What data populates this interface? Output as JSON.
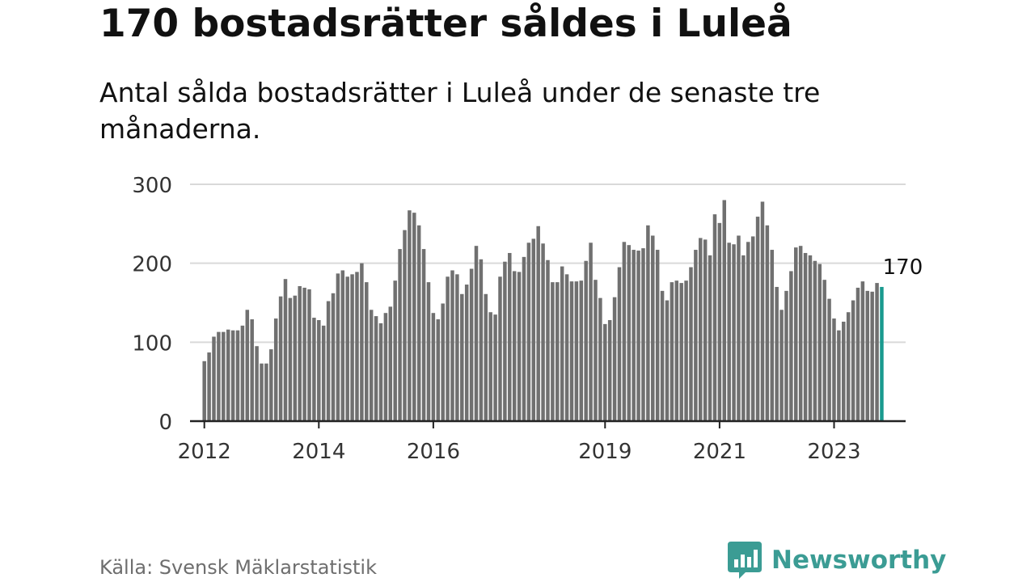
{
  "title": "170 bostadsrätter såldes i Luleå",
  "subtitle": "Antal sålda bostadsrätter i Luleå under de senaste tre månaderna.",
  "source": "Källa: Svensk Mäklarstatistik",
  "brand": {
    "name": "Newsworthy",
    "icon": "newsworthy-chart-bubble-icon",
    "color": "#3b9c94"
  },
  "colors": {
    "bar": "#707070",
    "highlight": "#1a9a8f",
    "grid": "#d9d9d9",
    "axis": "#222222",
    "tick_text": "#333333"
  },
  "chart_data": {
    "type": "bar",
    "title": "Antal sålda bostadsrätter i Luleå",
    "xlabel": "",
    "ylabel": "",
    "ylim": [
      0,
      300
    ],
    "yticks": [
      0,
      100,
      200,
      300
    ],
    "x_start": 2012.0,
    "x_step": 0.08333,
    "x_range": [
      2011.75,
      2024.25
    ],
    "xticks": [
      {
        "x": 2012,
        "label": "2012"
      },
      {
        "x": 2014,
        "label": "2014"
      },
      {
        "x": 2016,
        "label": "2016"
      },
      {
        "x": 2019,
        "label": "2019"
      },
      {
        "x": 2021,
        "label": "2021"
      },
      {
        "x": 2023,
        "label": "2023"
      }
    ],
    "values": [
      76,
      87,
      107,
      113,
      113,
      116,
      115,
      115,
      121,
      141,
      129,
      95,
      73,
      73,
      91,
      130,
      158,
      180,
      156,
      159,
      171,
      169,
      167,
      131,
      128,
      121,
      152,
      162,
      187,
      191,
      183,
      186,
      189,
      200,
      176,
      141,
      133,
      124,
      137,
      145,
      178,
      218,
      242,
      267,
      264,
      248,
      218,
      176,
      137,
      129,
      149,
      183,
      191,
      186,
      161,
      173,
      193,
      222,
      205,
      161,
      138,
      135,
      183,
      202,
      213,
      190,
      189,
      208,
      226,
      231,
      247,
      225,
      204,
      176,
      176,
      196,
      186,
      177,
      177,
      178,
      203,
      226,
      179,
      156,
      123,
      128,
      157,
      195,
      227,
      223,
      217,
      216,
      219,
      248,
      235,
      217,
      165,
      153,
      176,
      178,
      175,
      178,
      195,
      217,
      232,
      230,
      210,
      262,
      251,
      280,
      226,
      224,
      235,
      210,
      227,
      234,
      259,
      278,
      248,
      217,
      170,
      141,
      165,
      190,
      220,
      222,
      213,
      210,
      203,
      199,
      179,
      155,
      130,
      115,
      126,
      138,
      153,
      169,
      177,
      165,
      164,
      175,
      170
    ],
    "highlight_last": true,
    "annotation": "170"
  }
}
